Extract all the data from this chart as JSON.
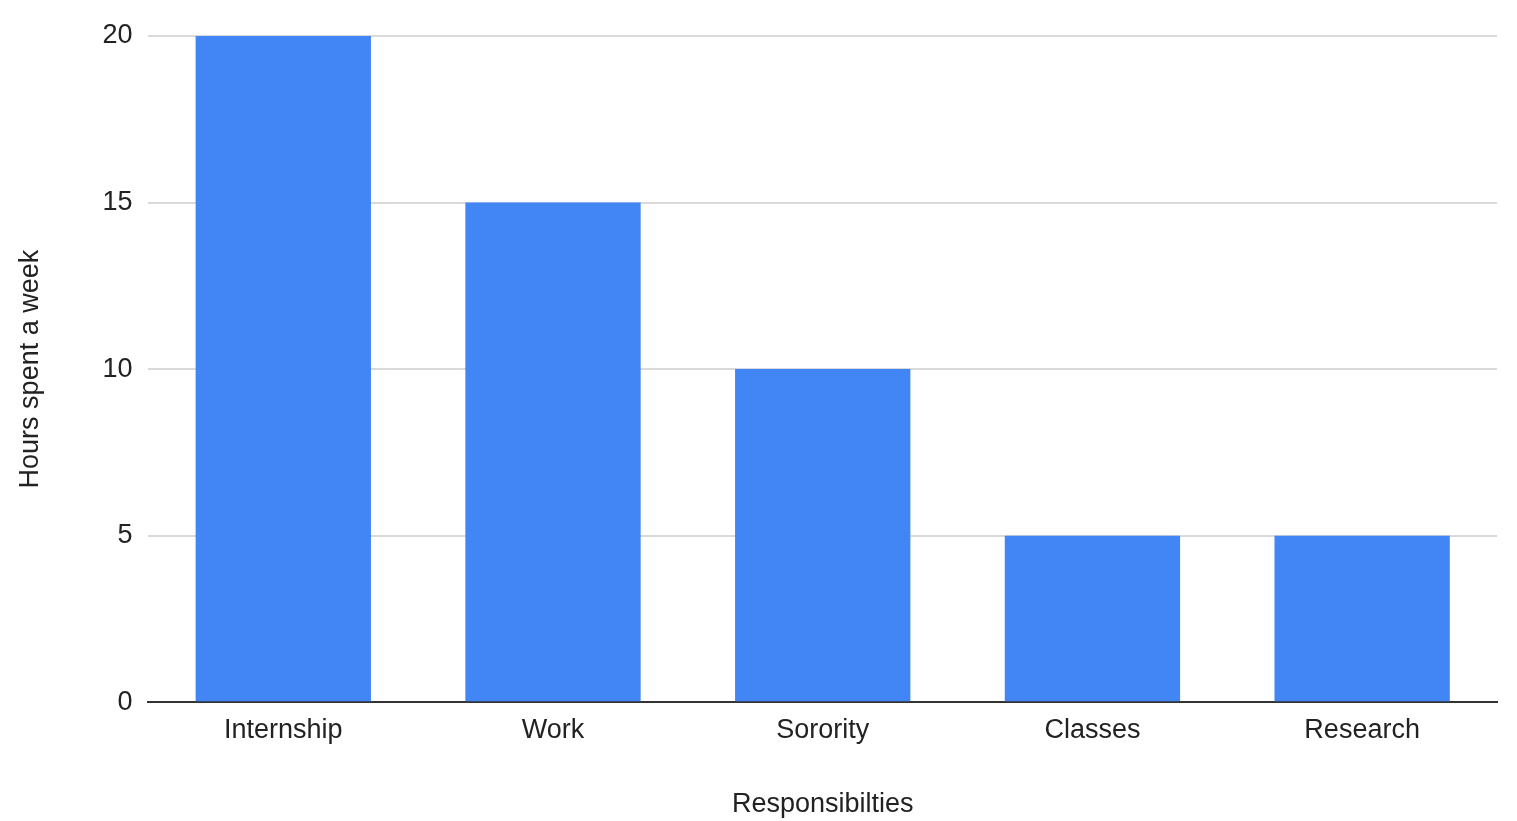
{
  "chart_data": {
    "type": "bar",
    "xlabel": "Responsibilties",
    "ylabel": "Hours spent a week",
    "categories": [
      "Internship",
      "Work",
      "Sorority",
      "Classes",
      "Research"
    ],
    "values": [
      20,
      15,
      10,
      5,
      5
    ],
    "color": "#4285f4",
    "ylim": [
      0,
      20
    ],
    "yticks": [
      0,
      5,
      10,
      15,
      20
    ],
    "grid": "y",
    "legend": false
  }
}
